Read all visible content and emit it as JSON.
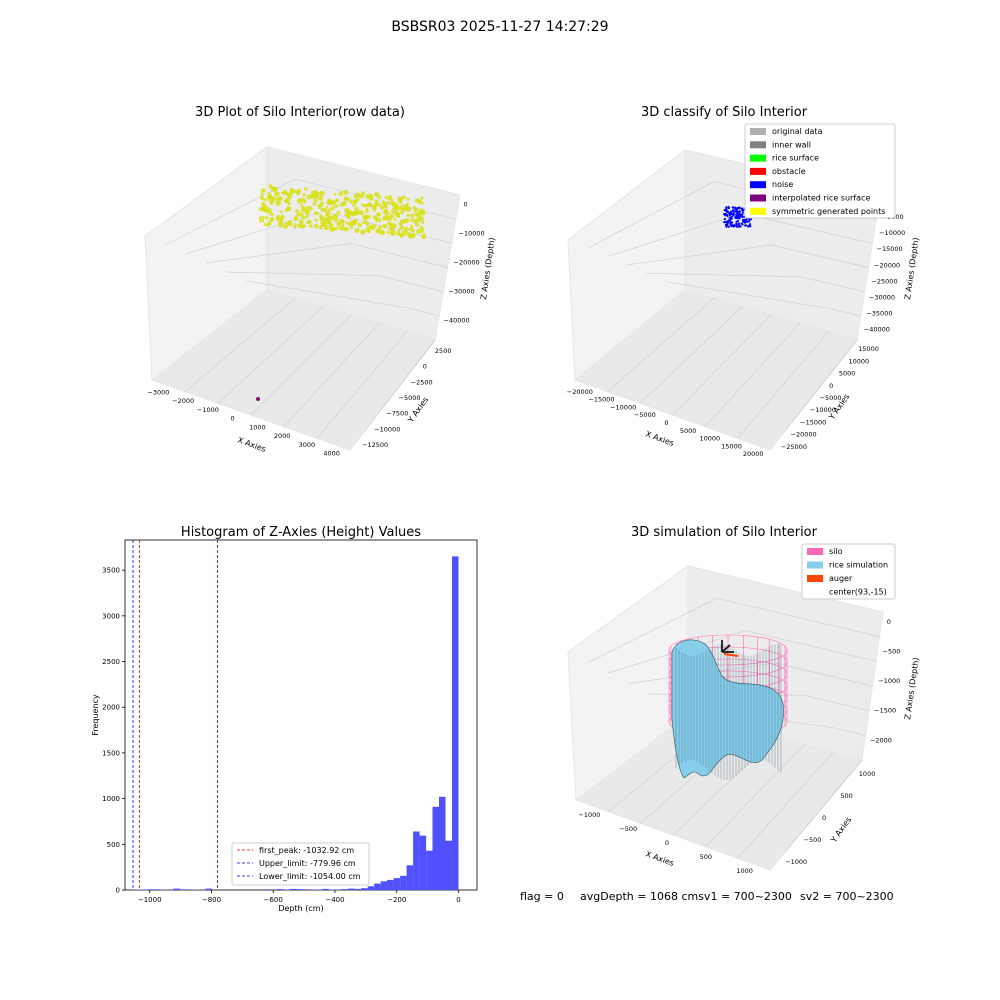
{
  "suptitle": "BSBSR03 2025-11-27 14:27:29",
  "colors": {
    "yellow": "#d9e21a",
    "blue": "#0000ff",
    "hist": "#5050ff",
    "silo": "#ff69b4",
    "rice": "#87ceeb",
    "auger": "#ff4500",
    "peak": "#ff0000",
    "limit": "#0000ff",
    "purple": "#7b0f7b"
  },
  "panels": {
    "raw": {
      "title": "3D Plot of Silo Interior(row data)",
      "xlabel": "X Axies",
      "ylabel": "Y Axies",
      "zlabel": "Z Axies (Depth)",
      "xticks": [
        "−3000",
        "−2000",
        "−1000",
        "0",
        "1000",
        "2000",
        "3000",
        "4000"
      ],
      "yticks": [
        "2500",
        "0",
        "−2500",
        "−5000",
        "−7500",
        "−10000",
        "−12500"
      ],
      "zticks": [
        "0",
        "−10000",
        "−20000",
        "−30000",
        "−40000"
      ]
    },
    "classify": {
      "title": "3D classify of Silo Interior",
      "xlabel": "X Axies",
      "ylabel": "Y Axies",
      "zlabel": "Z Axies (Depth)",
      "xticks": [
        "−20000",
        "−15000",
        "−10000",
        "−5000",
        "0",
        "5000",
        "10000",
        "15000",
        "20000"
      ],
      "yticks": [
        "15000",
        "10000",
        "5000",
        "0",
        "−5000",
        "−10000",
        "−15000",
        "−20000",
        "−25000"
      ],
      "zticks": [
        "0",
        "−5000",
        "−10000",
        "−15000",
        "−20000",
        "−25000",
        "−30000",
        "−35000",
        "−40000"
      ],
      "legend": [
        {
          "label": "original data",
          "color": "#b0b0b0"
        },
        {
          "label": "inner wall",
          "color": "#808080"
        },
        {
          "label": "rice surface",
          "color": "#00ff00"
        },
        {
          "label": "obstacle",
          "color": "#ff0000"
        },
        {
          "label": "noise",
          "color": "#0000ff"
        },
        {
          "label": "interpolated rice surface",
          "color": "#800080"
        },
        {
          "label": "symmetric generated points",
          "color": "#ffff00"
        }
      ]
    },
    "simulation": {
      "title": "3D simulation of Silo Interior",
      "xlabel": "X Axies",
      "ylabel": "Y Axies",
      "zlabel": "Z Axies (Depth)",
      "xticks": [
        "−1000",
        "−500",
        "0",
        "500",
        "1000"
      ],
      "yticks": [
        "1000",
        "500",
        "0",
        "−500",
        "−1000"
      ],
      "zticks": [
        "0",
        "−500",
        "−1000",
        "−1500",
        "−2000"
      ],
      "legend": [
        {
          "label": "silo",
          "color": "#ff69b4"
        },
        {
          "label": "rice simulation",
          "color": "#87ceeb"
        },
        {
          "label": "auger",
          "color": "#ff4500"
        },
        {
          "label": "center(93,-15)",
          "color": "none"
        }
      ]
    }
  },
  "status": {
    "flag": "flag = 0",
    "avg": "avgDepth = 1068 cmsv1 = 700~2300",
    "sv2": "sv2 = 700~2300"
  },
  "chart_data": [
    {
      "type": "histogram",
      "title": "Histogram of Z-Axies (Height) Values",
      "xlabel": "Depth (cm)",
      "ylabel": "Frequency",
      "xlim": [
        -1080,
        60
      ],
      "ylim": [
        0,
        3830
      ],
      "xticks": [
        -1000,
        -800,
        -600,
        -400,
        -200,
        0
      ],
      "xtick_labels": [
        "−1000",
        "−800",
        "−600",
        "−400",
        "−200",
        "0"
      ],
      "yticks": [
        0,
        500,
        1000,
        1500,
        2000,
        2500,
        3000,
        3500
      ],
      "bin_width": 21,
      "bins": [
        {
          "x": -1050,
          "count": 5
        },
        {
          "x": -1029,
          "count": 5
        },
        {
          "x": -1008,
          "count": 8
        },
        {
          "x": -987,
          "count": 8
        },
        {
          "x": -966,
          "count": 5
        },
        {
          "x": -945,
          "count": 3
        },
        {
          "x": -924,
          "count": 15
        },
        {
          "x": -903,
          "count": 8
        },
        {
          "x": -882,
          "count": 2
        },
        {
          "x": -861,
          "count": 5
        },
        {
          "x": -840,
          "count": 2
        },
        {
          "x": -819,
          "count": 15
        },
        {
          "x": -798,
          "count": 0
        },
        {
          "x": -777,
          "count": 0
        },
        {
          "x": -756,
          "count": 0
        },
        {
          "x": -735,
          "count": 0
        },
        {
          "x": -714,
          "count": 0
        },
        {
          "x": -693,
          "count": 0
        },
        {
          "x": -672,
          "count": 0
        },
        {
          "x": -651,
          "count": 0
        },
        {
          "x": -630,
          "count": 8
        },
        {
          "x": -609,
          "count": 0
        },
        {
          "x": -588,
          "count": 10
        },
        {
          "x": -567,
          "count": 5
        },
        {
          "x": -546,
          "count": 12
        },
        {
          "x": -525,
          "count": 10
        },
        {
          "x": -504,
          "count": 8
        },
        {
          "x": -483,
          "count": 3
        },
        {
          "x": -462,
          "count": 5
        },
        {
          "x": -441,
          "count": 12
        },
        {
          "x": -420,
          "count": 5
        },
        {
          "x": -399,
          "count": 3
        },
        {
          "x": -378,
          "count": 10
        },
        {
          "x": -357,
          "count": 15
        },
        {
          "x": -336,
          "count": 12
        },
        {
          "x": -315,
          "count": 20
        },
        {
          "x": -294,
          "count": 40
        },
        {
          "x": -273,
          "count": 70
        },
        {
          "x": -252,
          "count": 95
        },
        {
          "x": -231,
          "count": 110
        },
        {
          "x": -210,
          "count": 130
        },
        {
          "x": -189,
          "count": 155
        },
        {
          "x": -168,
          "count": 270
        },
        {
          "x": -147,
          "count": 640
        },
        {
          "x": -126,
          "count": 595
        },
        {
          "x": -105,
          "count": 430
        },
        {
          "x": -84,
          "count": 910
        },
        {
          "x": -63,
          "count": 1020
        },
        {
          "x": -42,
          "count": 540
        },
        {
          "x": -21,
          "count": 3650
        }
      ],
      "lines": [
        {
          "name": "first_peak",
          "label": "first_peak: -1032.92 cm",
          "x": -1032.92,
          "color": "#ff0000"
        },
        {
          "name": "upper_limit",
          "label": "Upper_limit: -779.96 cm",
          "x": -779.96,
          "color": "#0000ff"
        },
        {
          "name": "lower_limit",
          "label": "Lower_limit: -1054.00 cm",
          "x": -1054.0,
          "color": "#0000ff"
        }
      ]
    }
  ]
}
